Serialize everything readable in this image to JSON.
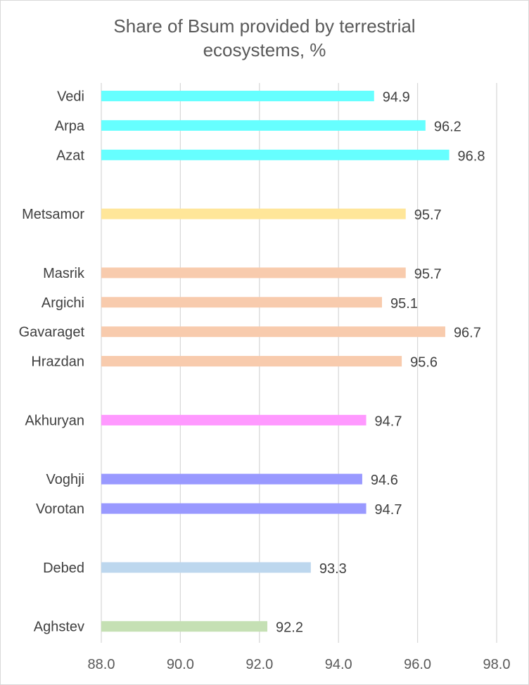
{
  "chart_data": {
    "type": "bar",
    "orientation": "horizontal",
    "title": "Share of Bsum provided by terrestrial\necosystems, %",
    "xlabel": "",
    "ylabel": "",
    "xlim": [
      88.0,
      98.0
    ],
    "xticks": [
      "88.0",
      "90.0",
      "92.0",
      "94.0",
      "96.0",
      "98.0"
    ],
    "grid": true,
    "legend": "none",
    "categories": [
      "Vedi",
      "Arpa",
      "Azat",
      "Metsamor",
      "Masrik",
      "Argichi",
      "Gavaraget",
      "Hrazdan",
      "Akhuryan",
      "Voghji",
      "Vorotan",
      "Debed",
      "Aghstev"
    ],
    "values": [
      94.9,
      96.2,
      96.8,
      95.7,
      95.7,
      95.1,
      96.7,
      95.6,
      94.7,
      94.6,
      94.7,
      93.3,
      92.2
    ],
    "data_labels": [
      "94.9",
      "96.2",
      "96.8",
      "95.7",
      "95.7",
      "95.1",
      "96.7",
      "95.6",
      "94.7",
      "94.6",
      "94.7",
      "93.3",
      "92.2"
    ],
    "groups": [
      {
        "members": [
          "Vedi",
          "Arpa",
          "Azat"
        ],
        "color": "#66FFFF"
      },
      {
        "members": [
          "Metsamor"
        ],
        "color": "#FFE699"
      },
      {
        "members": [
          "Masrik",
          "Argichi",
          "Gavaraget",
          "Hrazdan"
        ],
        "color": "#F8CBAD"
      },
      {
        "members": [
          "Akhuryan"
        ],
        "color": "#FF99FF"
      },
      {
        "members": [
          "Voghji",
          "Vorotan"
        ],
        "color": "#9999FF"
      },
      {
        "members": [
          "Debed"
        ],
        "color": "#BDD7EE"
      },
      {
        "members": [
          "Aghstev"
        ],
        "color": "#C5E0B4"
      }
    ]
  }
}
